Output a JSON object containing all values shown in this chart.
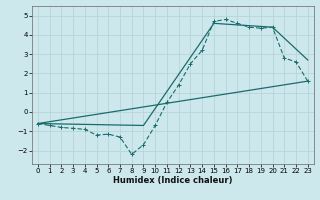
{
  "xlabel": "Humidex (Indice chaleur)",
  "ylabel": "",
  "bg_color": "#cde8ec",
  "grid_color": "#b8d4d8",
  "line_color": "#1a6b6b",
  "xlim": [
    -0.5,
    23.5
  ],
  "ylim": [
    -2.7,
    5.5
  ],
  "xticks": [
    0,
    1,
    2,
    3,
    4,
    5,
    6,
    7,
    8,
    9,
    10,
    11,
    12,
    13,
    14,
    15,
    16,
    17,
    18,
    19,
    20,
    21,
    22,
    23
  ],
  "yticks": [
    -2,
    -1,
    0,
    1,
    2,
    3,
    4,
    5
  ],
  "series1_x": [
    0,
    1,
    2,
    3,
    4,
    5,
    6,
    7,
    8,
    9,
    10,
    11,
    12,
    13,
    14,
    15,
    16,
    17,
    18,
    19,
    20,
    21,
    22,
    23
  ],
  "series1_y": [
    -0.6,
    -0.7,
    -0.8,
    -0.85,
    -0.9,
    -1.2,
    -1.15,
    -1.3,
    -2.2,
    -1.7,
    -0.7,
    0.5,
    1.4,
    2.5,
    3.2,
    4.7,
    4.8,
    4.6,
    4.4,
    4.35,
    4.4,
    2.8,
    2.6,
    1.6
  ],
  "series2_x": [
    0,
    23
  ],
  "series2_y": [
    -0.6,
    1.6
  ],
  "series3_x": [
    0,
    9,
    15,
    20,
    23
  ],
  "series3_y": [
    -0.6,
    -0.7,
    4.6,
    4.4,
    2.7
  ],
  "xlabel_fontsize": 6.0,
  "tick_fontsize": 5.0
}
